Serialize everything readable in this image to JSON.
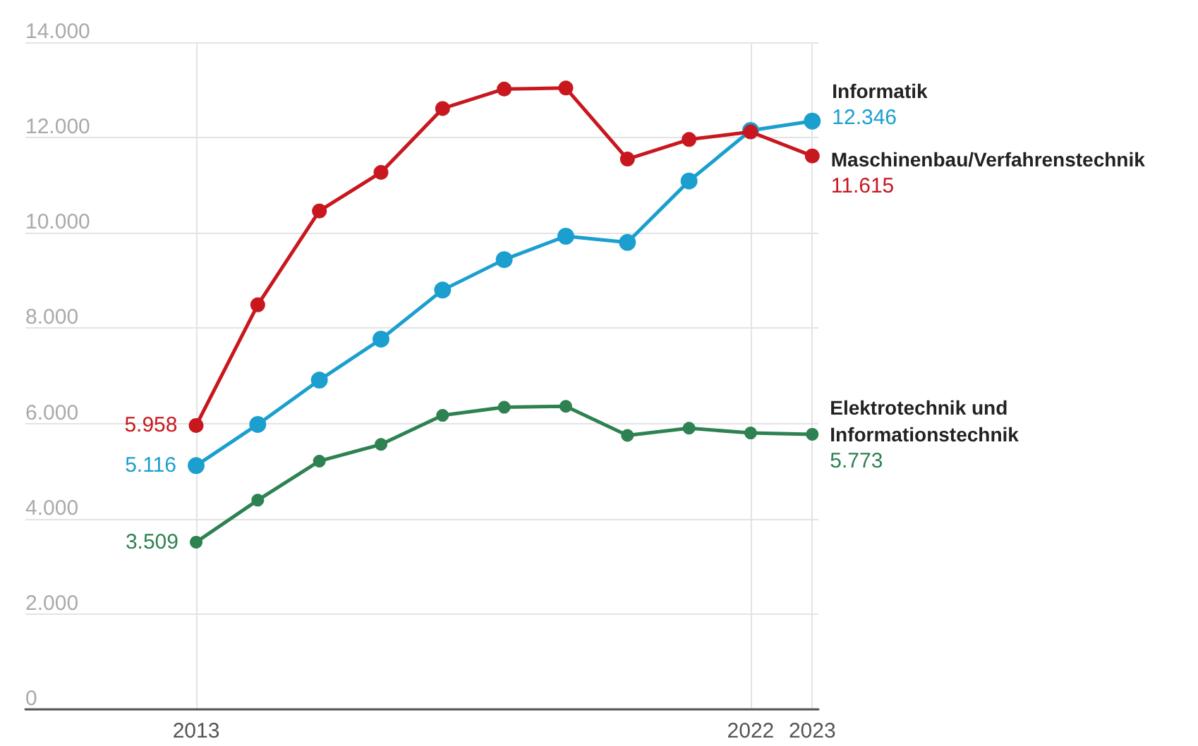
{
  "chart_data": {
    "type": "line",
    "categories": [
      "2013",
      null,
      null,
      null,
      null,
      null,
      null,
      null,
      null,
      "2022",
      "2023"
    ],
    "series": [
      {
        "name": "Informatik",
        "color": "#1a9fcf",
        "values": [
          5116,
          5980,
          6910,
          7770,
          8800,
          9440,
          9930,
          9800,
          11090,
          12150,
          12346
        ],
        "value_labels": [
          "5.116",
          null,
          null,
          null,
          null,
          null,
          null,
          null,
          null,
          null,
          "12.346"
        ]
      },
      {
        "name": "Maschinenbau/Verfahrenstechnik",
        "color": "#c8171e",
        "values": [
          5958,
          8490,
          10460,
          11270,
          12610,
          13020,
          13040,
          11550,
          11960,
          12120,
          11615
        ],
        "value_labels": [
          "5.958",
          null,
          null,
          null,
          null,
          null,
          null,
          null,
          null,
          null,
          "11.615"
        ]
      },
      {
        "name": "Elektrotechnik und Informationstechnik",
        "color": "#2e8251",
        "values": [
          3509,
          4390,
          5210,
          5560,
          6170,
          6340,
          6360,
          5750,
          5900,
          5800,
          5773
        ],
        "value_labels": [
          "3.509",
          null,
          null,
          null,
          null,
          null,
          null,
          null,
          null,
          null,
          "5.773"
        ]
      }
    ],
    "ylim": [
      0,
      14000
    ],
    "yticks": [
      {
        "value": 0,
        "label": "0"
      },
      {
        "value": 2000,
        "label": "2.000"
      },
      {
        "value": 4000,
        "label": "4.000"
      },
      {
        "value": 6000,
        "label": "6.000"
      },
      {
        "value": 8000,
        "label": "8.000"
      },
      {
        "value": 10000,
        "label": "10.000"
      },
      {
        "value": 12000,
        "label": "12.000"
      },
      {
        "value": 14000,
        "label": "14.000"
      }
    ],
    "grid": true,
    "marker": "circle",
    "line_style": "solid",
    "legend": false
  }
}
